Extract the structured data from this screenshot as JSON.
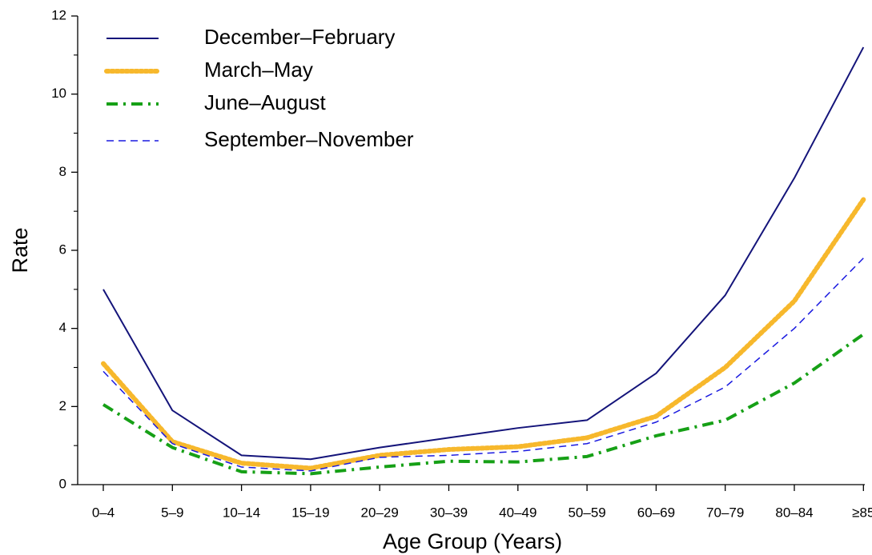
{
  "chart_data": {
    "type": "line",
    "x_label": "Age Group (Years)",
    "y_label": "Rate",
    "categories": [
      "0–4",
      "5–9",
      "10–14",
      "15–19",
      "20–29",
      "30–39",
      "40–49",
      "50–59",
      "60–69",
      "70–79",
      "80–84",
      "≥85"
    ],
    "ylim": [
      0,
      12
    ],
    "yticks": [
      0,
      2,
      4,
      6,
      8,
      10,
      12
    ],
    "legend": "upper left",
    "series": [
      {
        "name": "December–February",
        "color": "#14147a",
        "dash": "solid",
        "values": [
          5.0,
          1.9,
          0.75,
          0.65,
          0.95,
          1.2,
          1.45,
          1.65,
          2.85,
          4.85,
          7.85,
          11.2
        ]
      },
      {
        "name": "March–May",
        "color": "#f7b82c",
        "dash": "dotted",
        "values": [
          3.1,
          1.1,
          0.55,
          0.42,
          0.75,
          0.9,
          0.97,
          1.2,
          1.75,
          3.0,
          4.7,
          7.3
        ]
      },
      {
        "name": "June–August",
        "color": "#16a016",
        "dash": "dashdot",
        "values": [
          2.05,
          0.95,
          0.33,
          0.28,
          0.45,
          0.6,
          0.58,
          0.72,
          1.25,
          1.65,
          2.6,
          3.85
        ]
      },
      {
        "name": "September–November",
        "color": "#1a1ae0",
        "dash": "dashed",
        "values": [
          2.9,
          1.05,
          0.45,
          0.35,
          0.7,
          0.75,
          0.85,
          1.05,
          1.6,
          2.5,
          4.0,
          5.8
        ]
      }
    ]
  }
}
